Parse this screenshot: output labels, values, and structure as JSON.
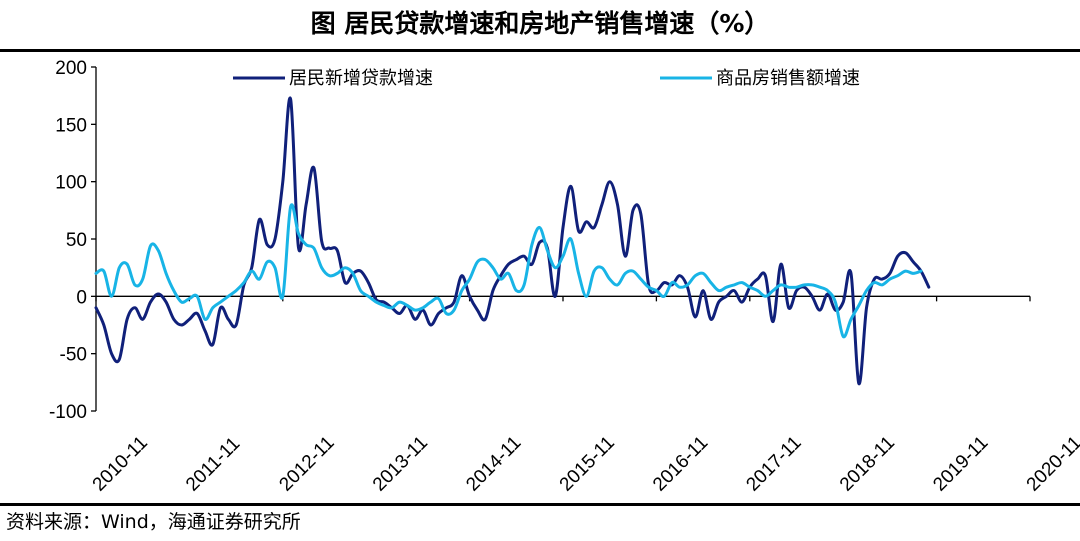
{
  "title": "图 居民贷款增速和房地产销售增速（%）",
  "source": "资料来源：Wind，海通证券研究所",
  "colors": {
    "series1": "#10207a",
    "series2": "#18b4e6",
    "axis": "#000000"
  },
  "chart_data": {
    "type": "line",
    "title": "图 居民贷款增速和房地产销售增速（%）",
    "ylim": [
      -100,
      200
    ],
    "yticks": [
      200,
      150,
      100,
      50,
      0,
      -50,
      -100
    ],
    "x_start": "2010-11",
    "x_end": "2020-11",
    "xticks": [
      "2010-11",
      "2011-11",
      "2012-11",
      "2013-11",
      "2014-11",
      "2015-11",
      "2016-11",
      "2017-11",
      "2018-11",
      "2019-11",
      "2020-11"
    ],
    "legend_position": "top",
    "grid": false,
    "series": [
      {
        "name": "居民新增贷款增速",
        "color": "#10207a",
        "points": [
          [
            "2010-11",
            -10
          ],
          [
            "2010-12",
            -25
          ],
          [
            "2011-01",
            -50
          ],
          [
            "2011-02",
            -55
          ],
          [
            "2011-03",
            -20
          ],
          [
            "2011-04",
            -10
          ],
          [
            "2011-05",
            -20
          ],
          [
            "2011-06",
            -5
          ],
          [
            "2011-07",
            2
          ],
          [
            "2011-08",
            -5
          ],
          [
            "2011-09",
            -20
          ],
          [
            "2011-10",
            -25
          ],
          [
            "2011-11",
            -20
          ],
          [
            "2011-12",
            -15
          ],
          [
            "2012-01",
            -30
          ],
          [
            "2012-02",
            -42
          ],
          [
            "2012-03",
            -10
          ],
          [
            "2012-04",
            -20
          ],
          [
            "2012-05",
            -25
          ],
          [
            "2012-06",
            10
          ],
          [
            "2012-07",
            25
          ],
          [
            "2012-08",
            67
          ],
          [
            "2012-09",
            45
          ],
          [
            "2012-10",
            50
          ],
          [
            "2012-11",
            100
          ],
          [
            "2012-12",
            172
          ],
          [
            "2013-01",
            43
          ],
          [
            "2013-02",
            80
          ],
          [
            "2013-03",
            112
          ],
          [
            "2013-04",
            48
          ],
          [
            "2013-05",
            42
          ],
          [
            "2013-06",
            40
          ],
          [
            "2013-07",
            12
          ],
          [
            "2013-08",
            20
          ],
          [
            "2013-09",
            22
          ],
          [
            "2013-10",
            12
          ],
          [
            "2013-11",
            -3
          ],
          [
            "2013-12",
            -5
          ],
          [
            "2014-01",
            -10
          ],
          [
            "2014-02",
            -15
          ],
          [
            "2014-03",
            -8
          ],
          [
            "2014-04",
            -20
          ],
          [
            "2014-05",
            -12
          ],
          [
            "2014-06",
            -25
          ],
          [
            "2014-07",
            -15
          ],
          [
            "2014-08",
            -10
          ],
          [
            "2014-09",
            -5
          ],
          [
            "2014-10",
            18
          ],
          [
            "2014-11",
            0
          ],
          [
            "2014-12",
            -12
          ],
          [
            "2015-01",
            -20
          ],
          [
            "2015-02",
            5
          ],
          [
            "2015-03",
            18
          ],
          [
            "2015-04",
            28
          ],
          [
            "2015-05",
            32
          ],
          [
            "2015-06",
            35
          ],
          [
            "2015-07",
            28
          ],
          [
            "2015-08",
            47
          ],
          [
            "2015-09",
            42
          ],
          [
            "2015-10",
            0
          ],
          [
            "2015-11",
            60
          ],
          [
            "2015-12",
            96
          ],
          [
            "2016-01",
            57
          ],
          [
            "2016-02",
            65
          ],
          [
            "2016-03",
            60
          ],
          [
            "2016-04",
            80
          ],
          [
            "2016-05",
            100
          ],
          [
            "2016-06",
            80
          ],
          [
            "2016-07",
            35
          ],
          [
            "2016-08",
            75
          ],
          [
            "2016-09",
            72
          ],
          [
            "2016-10",
            10
          ],
          [
            "2016-11",
            5
          ],
          [
            "2016-12",
            12
          ],
          [
            "2017-01",
            10
          ],
          [
            "2017-02",
            18
          ],
          [
            "2017-03",
            8
          ],
          [
            "2017-04",
            -18
          ],
          [
            "2017-05",
            5
          ],
          [
            "2017-06",
            -20
          ],
          [
            "2017-07",
            -5
          ],
          [
            "2017-08",
            0
          ],
          [
            "2017-09",
            5
          ],
          [
            "2017-10",
            -5
          ],
          [
            "2017-11",
            8
          ],
          [
            "2017-12",
            15
          ],
          [
            "2018-01",
            18
          ],
          [
            "2018-02",
            -22
          ],
          [
            "2018-03",
            28
          ],
          [
            "2018-04",
            -10
          ],
          [
            "2018-05",
            5
          ],
          [
            "2018-06",
            8
          ],
          [
            "2018-07",
            0
          ],
          [
            "2018-08",
            -12
          ],
          [
            "2018-09",
            2
          ],
          [
            "2018-10",
            -12
          ],
          [
            "2018-11",
            -5
          ],
          [
            "2018-12",
            20
          ],
          [
            "2019-01",
            -76
          ],
          [
            "2019-02",
            -10
          ],
          [
            "2019-03",
            15
          ],
          [
            "2019-04",
            15
          ],
          [
            "2019-05",
            20
          ],
          [
            "2019-06",
            35
          ],
          [
            "2019-07",
            38
          ],
          [
            "2019-08",
            30
          ],
          [
            "2019-09",
            22
          ],
          [
            "2019-10",
            8
          ]
        ]
      },
      {
        "name": "商品房销售额增速",
        "color": "#18b4e6",
        "points": [
          [
            "2010-11",
            20
          ],
          [
            "2010-12",
            22
          ],
          [
            "2011-01",
            0
          ],
          [
            "2011-02",
            25
          ],
          [
            "2011-03",
            28
          ],
          [
            "2011-04",
            10
          ],
          [
            "2011-05",
            15
          ],
          [
            "2011-06",
            44
          ],
          [
            "2011-07",
            40
          ],
          [
            "2011-08",
            20
          ],
          [
            "2011-09",
            5
          ],
          [
            "2011-10",
            -5
          ],
          [
            "2011-11",
            -2
          ],
          [
            "2011-12",
            0
          ],
          [
            "2012-01",
            -20
          ],
          [
            "2012-02",
            -10
          ],
          [
            "2012-03",
            -5
          ],
          [
            "2012-04",
            0
          ],
          [
            "2012-05",
            5
          ],
          [
            "2012-06",
            12
          ],
          [
            "2012-07",
            22
          ],
          [
            "2012-08",
            15
          ],
          [
            "2012-09",
            30
          ],
          [
            "2012-10",
            25
          ],
          [
            "2012-11",
            0
          ],
          [
            "2012-12",
            78
          ],
          [
            "2013-01",
            55
          ],
          [
            "2013-02",
            45
          ],
          [
            "2013-03",
            42
          ],
          [
            "2013-04",
            25
          ],
          [
            "2013-05",
            18
          ],
          [
            "2013-06",
            20
          ],
          [
            "2013-07",
            25
          ],
          [
            "2013-08",
            20
          ],
          [
            "2013-09",
            5
          ],
          [
            "2013-10",
            0
          ],
          [
            "2013-11",
            -5
          ],
          [
            "2013-12",
            -8
          ],
          [
            "2014-01",
            -10
          ],
          [
            "2014-02",
            -5
          ],
          [
            "2014-03",
            -8
          ],
          [
            "2014-04",
            -12
          ],
          [
            "2014-05",
            -10
          ],
          [
            "2014-06",
            -5
          ],
          [
            "2014-07",
            -2
          ],
          [
            "2014-08",
            -15
          ],
          [
            "2014-09",
            -12
          ],
          [
            "2014-10",
            5
          ],
          [
            "2014-11",
            15
          ],
          [
            "2014-12",
            30
          ],
          [
            "2015-01",
            32
          ],
          [
            "2015-02",
            25
          ],
          [
            "2015-03",
            15
          ],
          [
            "2015-04",
            20
          ],
          [
            "2015-05",
            5
          ],
          [
            "2015-06",
            10
          ],
          [
            "2015-07",
            45
          ],
          [
            "2015-08",
            60
          ],
          [
            "2015-09",
            40
          ],
          [
            "2015-10",
            25
          ],
          [
            "2015-11",
            35
          ],
          [
            "2015-12",
            50
          ],
          [
            "2016-01",
            20
          ],
          [
            "2016-02",
            0
          ],
          [
            "2016-03",
            22
          ],
          [
            "2016-04",
            25
          ],
          [
            "2016-05",
            15
          ],
          [
            "2016-06",
            10
          ],
          [
            "2016-07",
            20
          ],
          [
            "2016-08",
            22
          ],
          [
            "2016-09",
            15
          ],
          [
            "2016-10",
            8
          ],
          [
            "2016-11",
            5
          ],
          [
            "2016-12",
            0
          ],
          [
            "2017-01",
            12
          ],
          [
            "2017-02",
            8
          ],
          [
            "2017-03",
            10
          ],
          [
            "2017-04",
            18
          ],
          [
            "2017-05",
            20
          ],
          [
            "2017-06",
            12
          ],
          [
            "2017-07",
            5
          ],
          [
            "2017-08",
            8
          ],
          [
            "2017-09",
            10
          ],
          [
            "2017-10",
            12
          ],
          [
            "2017-11",
            8
          ],
          [
            "2017-12",
            5
          ],
          [
            "2018-01",
            0
          ],
          [
            "2018-02",
            5
          ],
          [
            "2018-03",
            10
          ],
          [
            "2018-04",
            8
          ],
          [
            "2018-05",
            8
          ],
          [
            "2018-06",
            10
          ],
          [
            "2018-07",
            10
          ],
          [
            "2018-08",
            8
          ],
          [
            "2018-09",
            5
          ],
          [
            "2018-10",
            -5
          ],
          [
            "2018-11",
            -35
          ],
          [
            "2018-12",
            -20
          ],
          [
            "2019-01",
            -8
          ],
          [
            "2019-02",
            5
          ],
          [
            "2019-03",
            12
          ],
          [
            "2019-04",
            10
          ],
          [
            "2019-05",
            15
          ],
          [
            "2019-06",
            18
          ],
          [
            "2019-07",
            22
          ],
          [
            "2019-08",
            20
          ],
          [
            "2019-09",
            22
          ]
        ]
      }
    ]
  }
}
